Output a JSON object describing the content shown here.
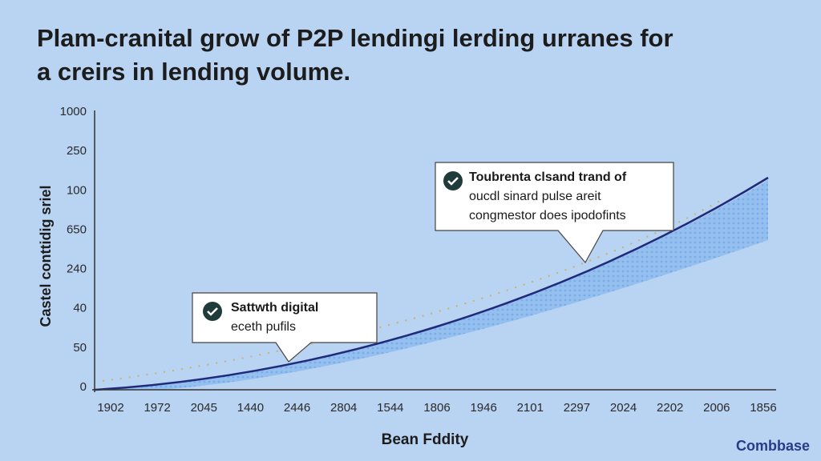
{
  "header": {
    "title_line_1": "Plam-cranital grow of P2P lendingi lerding urranes for",
    "title_line_2": "a creirs in lending volume."
  },
  "axis": {
    "y_title": "Castel conttidig sriel",
    "x_title": "Bean Fddity",
    "y_labels": [
      "1000",
      "250",
      "100",
      "650",
      "240",
      "40",
      "50",
      "0"
    ],
    "x_labels": [
      "1902",
      "1972",
      "2045",
      "1440",
      "2446",
      "2804",
      "1544",
      "1806",
      "1946",
      "2101",
      "2297",
      "2024",
      "2202",
      "2006",
      "1856"
    ]
  },
  "callouts": [
    {
      "lines": [
        "Toubrenta clsand trand of",
        "oucdl sinard pulse areit",
        "congmestor does ipodofints"
      ]
    },
    {
      "lines": [
        "Sattwth digital",
        "eceth pufils"
      ]
    }
  ],
  "logo": "Combbase"
}
